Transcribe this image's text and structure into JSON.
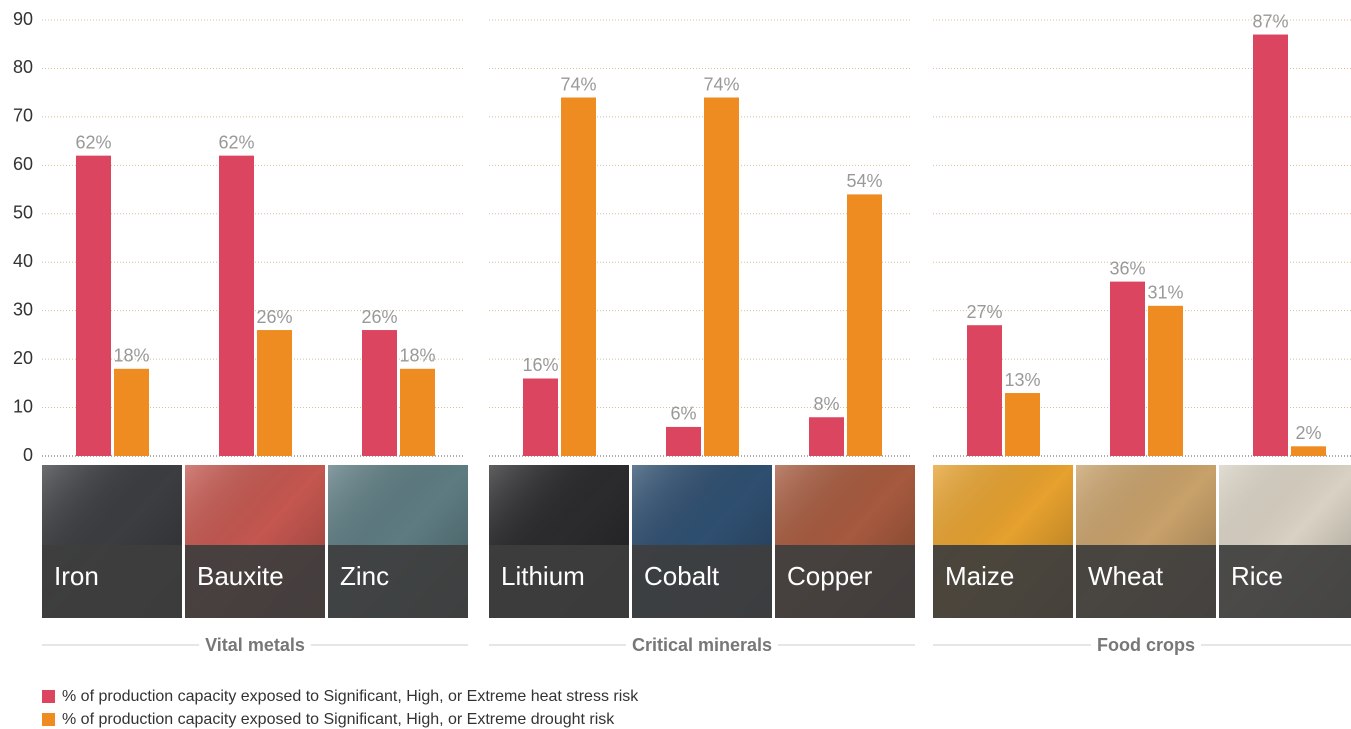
{
  "chart_data": {
    "type": "bar",
    "ylim": [
      0,
      90
    ],
    "yticks": [
      0,
      10,
      20,
      30,
      40,
      50,
      60,
      70,
      80,
      90
    ],
    "grid": true,
    "legend": [
      {
        "name": "% of production capacity exposed to Significant, High, or Extreme heat stress risk",
        "color": "#dc4560"
      },
      {
        "name": "% of production capacity exposed to Significant, High, or Extreme drought risk",
        "color": "#ee8c22"
      }
    ],
    "panels": [
      {
        "title": "Vital metals",
        "categories": [
          "Iron",
          "Bauxite",
          "Zinc"
        ],
        "series": [
          {
            "values": [
              62,
              62,
              26
            ],
            "value_labels": [
              "62%",
              "62%",
              "26%"
            ]
          },
          {
            "values": [
              18,
              26,
              18
            ],
            "value_labels": [
              "18%",
              "26%",
              "18%"
            ]
          }
        ]
      },
      {
        "title": "Critical minerals",
        "categories": [
          "Lithium",
          "Cobalt",
          "Copper"
        ],
        "series": [
          {
            "values": [
              16,
              6,
              8
            ],
            "value_labels": [
              "16%",
              "6%",
              "8%"
            ]
          },
          {
            "values": [
              74,
              74,
              54
            ],
            "value_labels": [
              "74%",
              "74%",
              "54%"
            ]
          }
        ]
      },
      {
        "title": "Food crops",
        "categories": [
          "Maize",
          "Wheat",
          "Rice"
        ],
        "series": [
          {
            "values": [
              27,
              36,
              87
            ],
            "value_labels": [
              "27%",
              "36%",
              "87%"
            ]
          },
          {
            "values": [
              13,
              31,
              2
            ],
            "value_labels": [
              "13%",
              "31%",
              "2%"
            ]
          }
        ]
      }
    ]
  }
}
